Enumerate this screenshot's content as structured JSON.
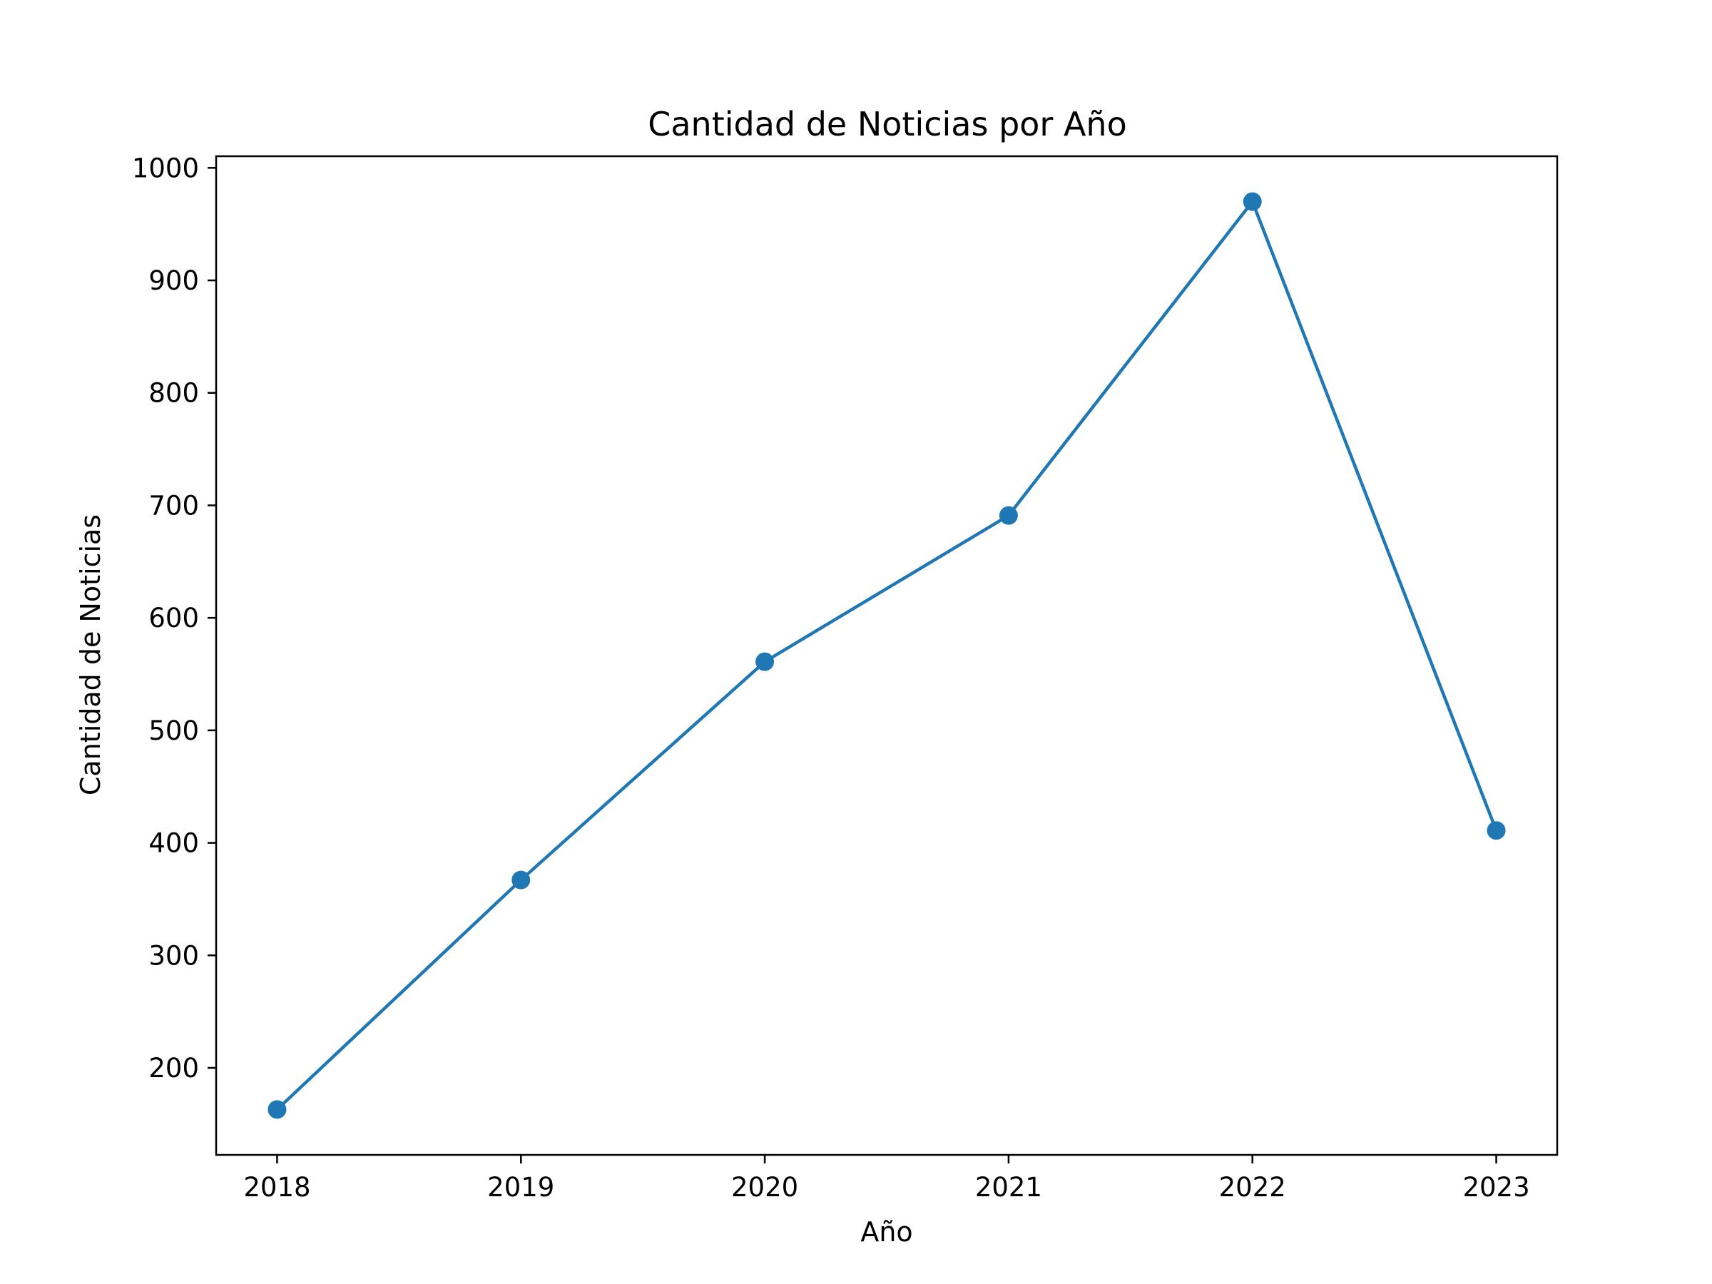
{
  "chart_data": {
    "type": "line",
    "title": "Cantidad de Noticias por Año",
    "xlabel": "Año",
    "ylabel": "Cantidad de Noticias",
    "x": [
      2018,
      2019,
      2020,
      2021,
      2022,
      2023
    ],
    "x_tick_labels": [
      "2018",
      "2019",
      "2020",
      "2021",
      "2022",
      "2023"
    ],
    "series": [
      {
        "values": [
          163,
          367,
          561,
          691,
          970,
          411
        ]
      }
    ],
    "xlim": [
      2017.75,
      2023.25
    ],
    "ylim": [
      122.65,
      1010.35
    ],
    "y_ticks": [
      200,
      300,
      400,
      500,
      600,
      700,
      800,
      900,
      1000
    ],
    "y_tick_labels": [
      "200",
      "300",
      "400",
      "500",
      "600",
      "700",
      "800",
      "900",
      "1000"
    ],
    "grid": false,
    "colors": {
      "line": "#1f77b4",
      "axes": "#000000"
    }
  }
}
